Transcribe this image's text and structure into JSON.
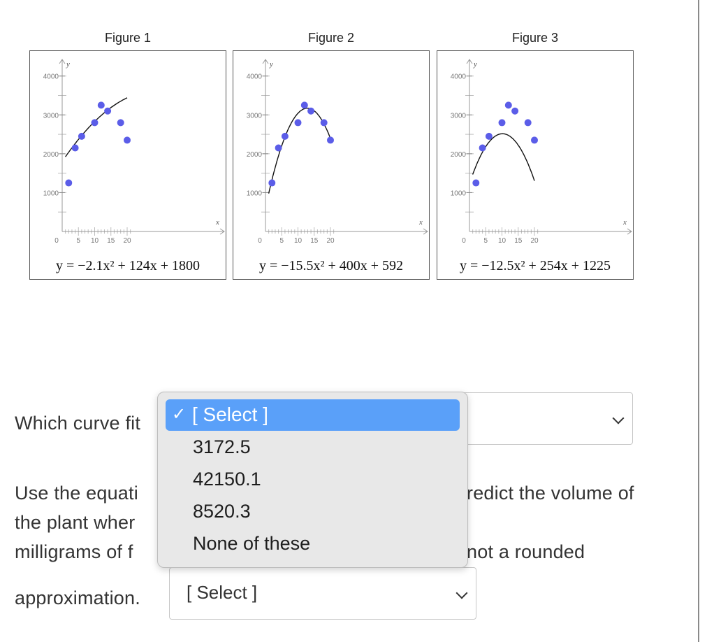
{
  "figures": [
    {
      "title": "Figure 1",
      "equation": "y = −2.1x² + 124x + 1800",
      "eq_a": -2.1,
      "eq_b": 124,
      "eq_c": 1800,
      "curve_x": [
        1,
        20
      ]
    },
    {
      "title": "Figure 2",
      "equation": "y = −15.5x² + 400x + 592",
      "eq_a": -15.5,
      "eq_b": 400,
      "eq_c": 592,
      "curve_x": [
        1,
        20
      ]
    },
    {
      "title": "Figure 3",
      "equation": "y = −12.5x² + 254x + 1225",
      "eq_a": -12.5,
      "eq_b": 254,
      "eq_c": 1225,
      "curve_x": [
        1,
        20
      ]
    }
  ],
  "chart_data": {
    "type": "scatter",
    "points_x": [
      2,
      4,
      6,
      10,
      12,
      14,
      18,
      20
    ],
    "points_y": [
      1250,
      2150,
      2450,
      2800,
      3250,
      3100,
      2800,
      2350
    ],
    "xlabel": "x",
    "ylabel": "y",
    "x_ticks": [
      "0",
      "5",
      "10",
      "15",
      "20"
    ],
    "y_ticks": [
      "1000",
      "2000",
      "3000",
      "4000"
    ],
    "xlim": [
      0,
      25
    ],
    "ylim": [
      0,
      4500
    ],
    "point_color": "#5b5de8"
  },
  "question1": {
    "text": "Which curve fit"
  },
  "question2": {
    "line1_left": "Use the equati",
    "line1_right": "redict the volume of",
    "line2_left": "the plant wher",
    "line3_left": "milligrams of f",
    "line3_right": "not a rounded",
    "line4": "approximation."
  },
  "select1": {
    "value": ""
  },
  "select2": {
    "value": "[ Select ]"
  },
  "dropdown": {
    "selected": "[ Select ]",
    "check": "✓",
    "options": [
      "3172.5",
      "42150.1",
      "8520.3",
      "None of these"
    ]
  }
}
